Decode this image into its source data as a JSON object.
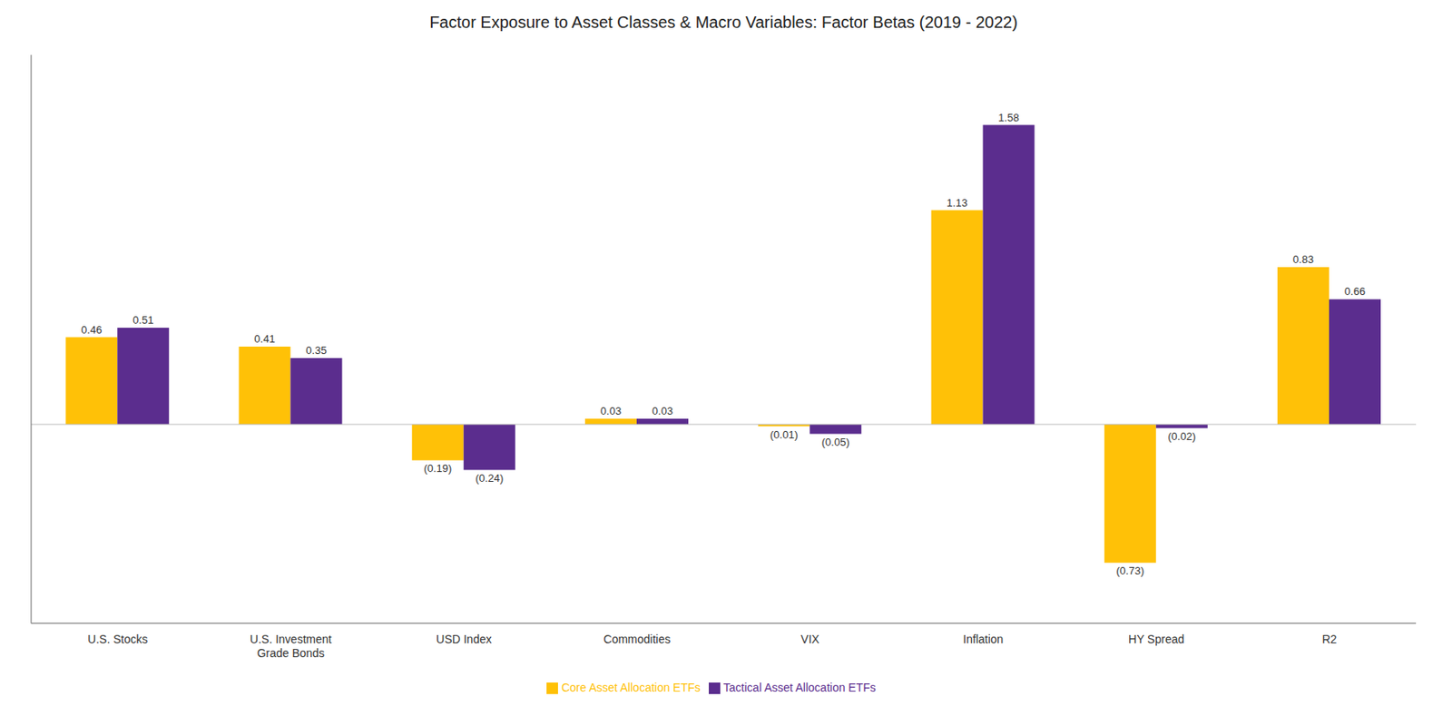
{
  "chart_data": {
    "type": "bar",
    "title": "Factor Exposure to Asset Classes & Macro Variables: Factor Betas (2019 - 2022)",
    "categories": [
      "U.S. Stocks",
      "U.S. Investment\nGrade Bonds",
      "USD Index",
      "Commodities",
      "VIX",
      "Inflation",
      "HY Spread",
      "R2"
    ],
    "series": [
      {
        "name": "Core Asset Allocation ETFs",
        "color": "#FFC107",
        "values": [
          0.46,
          0.41,
          -0.19,
          0.03,
          -0.01,
          1.13,
          -0.73,
          0.83
        ],
        "value_labels": [
          "0.46",
          "0.41",
          "(0.19)",
          "0.03",
          "(0.01)",
          "1.13",
          "(0.73)",
          "0.83"
        ]
      },
      {
        "name": "Tactical Asset Allocation ETFs",
        "color": "#5B2D8E",
        "values": [
          0.51,
          0.35,
          -0.24,
          0.03,
          -0.05,
          1.58,
          -0.02,
          0.66
        ],
        "value_labels": [
          "0.51",
          "0.35",
          "(0.24)",
          "0.03",
          "(0.05)",
          "1.58",
          "(0.02)",
          "0.66"
        ]
      }
    ],
    "ylim": [
      -1.05,
      1.95
    ],
    "grid": false,
    "legend": "bottom",
    "data_labels": true,
    "tick_labels": "x"
  }
}
